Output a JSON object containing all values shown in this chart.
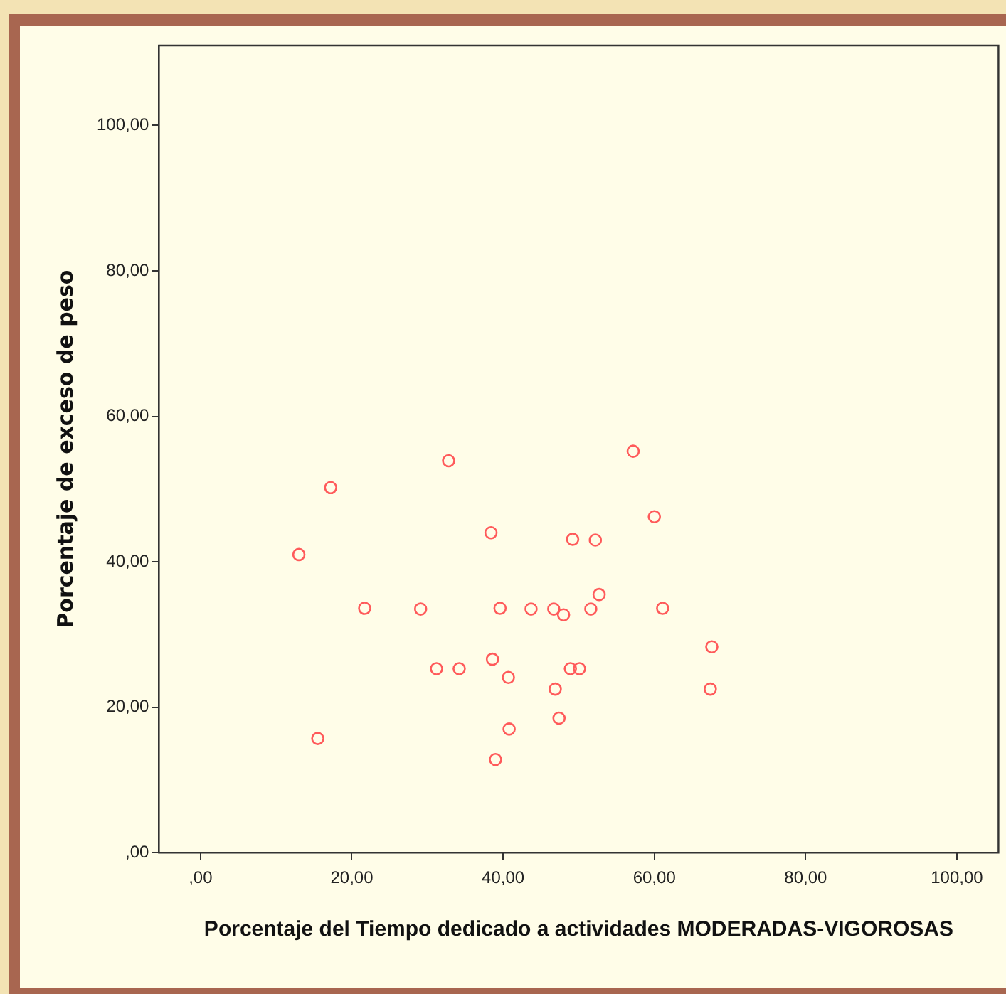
{
  "chart_data": {
    "type": "scatter",
    "xlabel": "Porcentaje del Tiempo dedicado a actividades MODERADAS-VIGOROSAS",
    "ylabel": "Porcentaje de exceso de peso",
    "marker": "circle",
    "grid": false,
    "legend": false,
    "x": [
      13.0,
      17.2,
      15.5,
      21.7,
      29.1,
      31.2,
      32.8,
      34.2,
      38.4,
      38.6,
      39.0,
      39.6,
      40.7,
      40.8,
      43.7,
      46.7,
      46.9,
      47.4,
      48.0,
      48.9,
      49.2,
      50.1,
      51.6,
      52.2,
      52.7,
      57.2,
      60.0,
      61.1,
      67.6,
      67.4
    ],
    "values": [
      41.0,
      50.2,
      15.7,
      33.6,
      33.5,
      25.3,
      53.9,
      25.3,
      44.0,
      26.6,
      12.8,
      33.6,
      24.1,
      17.0,
      33.5,
      33.5,
      22.5,
      18.5,
      32.7,
      25.3,
      43.1,
      25.3,
      33.5,
      43.0,
      35.5,
      55.2,
      46.2,
      33.6,
      28.3,
      22.5
    ],
    "color": "#ff5a5a",
    "xlim": [
      -5.5,
      105.5
    ],
    "ylim": [
      0,
      111
    ],
    "xticks": [
      {
        "value": 0,
        "label": ",00"
      },
      {
        "value": 20,
        "label": "20,00"
      },
      {
        "value": 40,
        "label": "40,00"
      },
      {
        "value": 60,
        "label": "60,00"
      },
      {
        "value": 80,
        "label": "80,00"
      },
      {
        "value": 100,
        "label": "100,00"
      }
    ],
    "yticks": [
      {
        "value": 0,
        "label": ",00"
      },
      {
        "value": 20,
        "label": "20,00"
      },
      {
        "value": 40,
        "label": "40,00"
      },
      {
        "value": 60,
        "label": "60,00"
      },
      {
        "value": 80,
        "label": "80,00"
      },
      {
        "value": 100,
        "label": "100,00"
      }
    ]
  }
}
